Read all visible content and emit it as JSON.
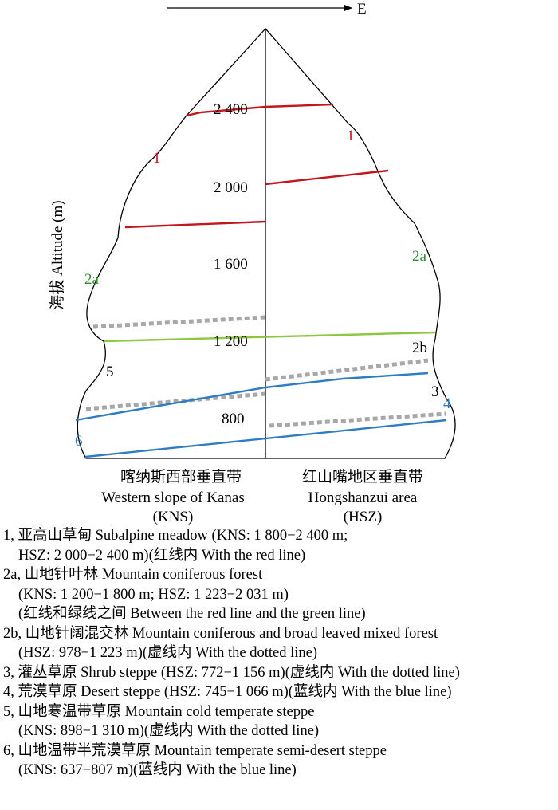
{
  "direction": {
    "label": "E"
  },
  "axis": {
    "label": "海拔 Altitude (m)",
    "ticks": [
      {
        "value": 800,
        "label": "800"
      },
      {
        "value": 1200,
        "label": "1 200"
      },
      {
        "value": 1600,
        "label": "1 600"
      },
      {
        "value": 2000,
        "label": "2 000"
      },
      {
        "value": 2400,
        "label": "2 400"
      }
    ]
  },
  "colors": {
    "red": "#c0161e",
    "green": "#8dc63f",
    "blue": "#2f7cc4",
    "dotted": "#a8a8a8",
    "green_label": "#2e8b2e",
    "blue_label": "#2f7cc4"
  },
  "zone_labels": {
    "west": {
      "z1": "1",
      "z2a": "2a",
      "z5": "5",
      "z6": "6"
    },
    "east": {
      "z1": "1",
      "z2a": "2a",
      "z2b": "2b",
      "z3": "3",
      "z4": "4"
    }
  },
  "sides": {
    "west": {
      "zh": "喀纳斯西部垂直带",
      "en": "Western slope of Kanas",
      "abbr": "(KNS)"
    },
    "east": {
      "zh": "红山嘴地区垂直带",
      "en": "Hongshanzui area",
      "abbr": "(HSZ)"
    }
  },
  "legend": {
    "l1a": "1, 亚高山草甸 Subalpine meadow (KNS: 1 800−2 400 m;",
    "l1b": "HSZ: 2 000−2 400 m)(红线内 With the red line)",
    "l2a_1": "2a, 山地针叶林 Mountain coniferous forest",
    "l2a_2": "(KNS: 1 200−1 800 m; HSZ: 1 223−2 031 m)",
    "l2a_3": "(红线和绿线之间 Between the red line and the green line)",
    "l2b_1": "2b, 山地针阔混交林 Mountain coniferous and broad leaved mixed forest",
    "l2b_2": "(HSZ: 978−1 223 m)(虚线内 With the dotted line)",
    "l3": "3, 灌丛草原 Shrub steppe (HSZ: 772−1 156 m)(虚线内 With the dotted line)",
    "l4": "4, 荒漠草原 Desert steppe (HSZ: 745−1 066 m)(蓝线内 With the blue line)",
    "l5a": "5, 山地寒温带草原 Mountain cold temperate steppe",
    "l5b": "(KNS: 898−1 310 m)(虚线内 With the dotted line)",
    "l6a": "6, 山地温带半荒漠草原 Mountain temperate semi-desert steppe",
    "l6b": "(KNS: 637−807 m)(蓝线内 With the blue line)"
  }
}
